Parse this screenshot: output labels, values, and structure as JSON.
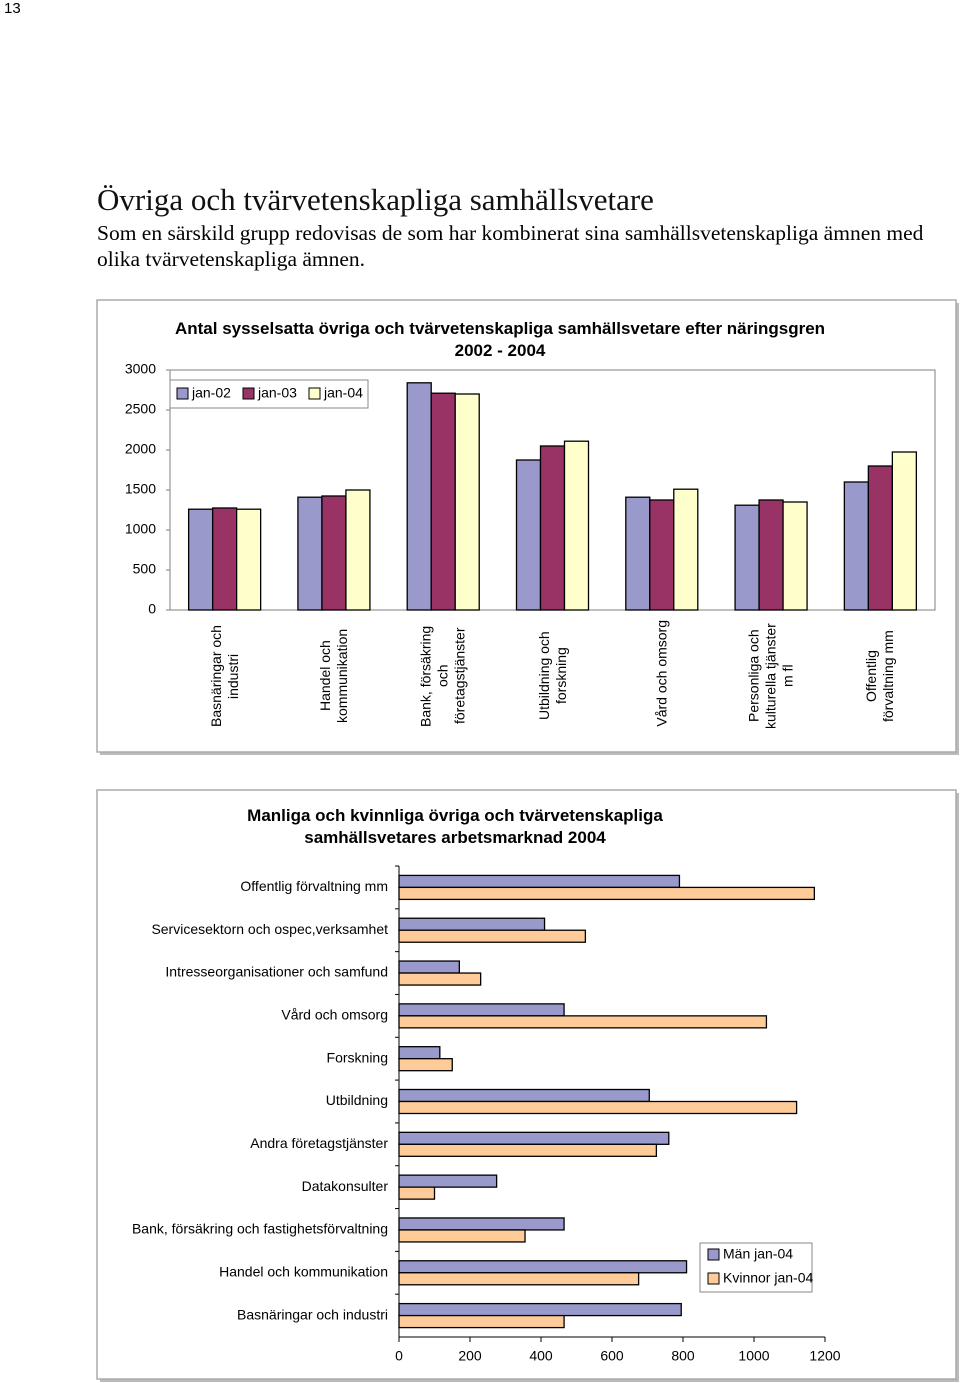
{
  "page_number": "13",
  "heading": "Övriga och tvärvetenskapliga samhällsvetare",
  "intro": "Som en särskild grupp redovisas de som har kombinerat sina samhällsvetenskapliga ämnen med olika tvärvetenskapliga ämnen.",
  "chart_data": [
    {
      "type": "bar",
      "title": "Antal sysselsatta övriga och tvärvetenskapliga samhällsvetare efter näringsgren 2002 - 2004",
      "categories": [
        "Basnäringar och industri",
        "Handel och kommunikation",
        "Bank, försäkring och företagstjänster",
        "Utbildning och forskning",
        "Vård och omsorg",
        "Personliga och kulturella tjänster m fl",
        "Offentlig förvaltning mm"
      ],
      "series": [
        {
          "name": "jan-02",
          "color": "#9999cc",
          "values": [
            1260,
            1410,
            2840,
            1875,
            1410,
            1310,
            1600
          ]
        },
        {
          "name": "jan-03",
          "color": "#993366",
          "values": [
            1275,
            1425,
            2710,
            2050,
            1375,
            1375,
            1800
          ]
        },
        {
          "name": "jan-04",
          "color": "#ffffcc",
          "values": [
            1260,
            1500,
            2700,
            2110,
            1510,
            1350,
            1975
          ]
        }
      ],
      "ylim": [
        0,
        3000
      ],
      "yticks": [
        0,
        500,
        1000,
        1500,
        2000,
        2500,
        3000
      ],
      "grid": false,
      "legend": "upper-left"
    },
    {
      "type": "barh",
      "title": "Manliga och kvinnliga övriga och tvärvetenskapliga samhällsvetares arbetsmarknad 2004",
      "categories": [
        "Offentlig förvaltning mm",
        "Servicesektorn och ospec,verksamhet",
        "Intresseorganisationer och samfund",
        "Vård och omsorg",
        "Forskning",
        "Utbildning",
        "Andra företagstjänster",
        "Datakonsulter",
        "Bank, försäkring och fastighetsförvaltning",
        "Handel och kommunikation",
        "Basnäringar och industri"
      ],
      "series": [
        {
          "name": "Män jan-04",
          "color": "#9999cc",
          "values": [
            790,
            410,
            170,
            465,
            115,
            705,
            760,
            275,
            465,
            810,
            795
          ]
        },
        {
          "name": "Kvinnor jan-04",
          "color": "#ffcc99",
          "values": [
            1170,
            525,
            230,
            1035,
            150,
            1120,
            725,
            100,
            355,
            675,
            465
          ]
        }
      ],
      "xlim": [
        0,
        1200
      ],
      "xticks": [
        0,
        200,
        400,
        600,
        800,
        1000,
        1200
      ],
      "grid": false,
      "legend": "lower-right"
    }
  ]
}
